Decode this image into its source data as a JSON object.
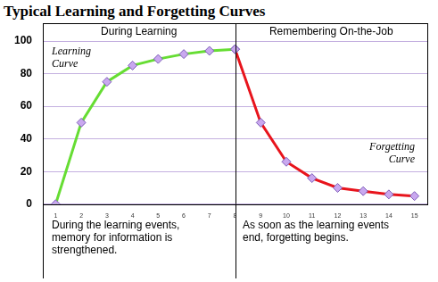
{
  "chart_data": {
    "type": "line",
    "title": "Typical Learning and Forgetting Curves",
    "categories": [
      "1",
      "2",
      "3",
      "4",
      "5",
      "6",
      "7",
      "8",
      "9",
      "10",
      "11",
      "12",
      "13",
      "14",
      "15"
    ],
    "series": [
      {
        "name": "Learning Curve",
        "color": "#66dd33",
        "marker": "diamond",
        "values": [
          0,
          50,
          75,
          85,
          89,
          92,
          94,
          95,
          null,
          null,
          null,
          null,
          null,
          null,
          null
        ]
      },
      {
        "name": "Forgetting Curve",
        "color": "#e8141c",
        "marker": "diamond",
        "values": [
          null,
          null,
          null,
          null,
          null,
          null,
          null,
          95,
          50,
          26,
          16,
          10,
          8,
          6,
          5
        ]
      }
    ],
    "panels": [
      {
        "heading": "During Learning",
        "caption": "During the learning events, memory for information is strengthened."
      },
      {
        "heading": "Remembering On-the-Job",
        "caption": "As soon as the learning events end, forgetting begins."
      }
    ],
    "ylim": [
      0,
      100
    ],
    "yticks": [
      0,
      20,
      40,
      60,
      80,
      100
    ],
    "grid": true
  }
}
